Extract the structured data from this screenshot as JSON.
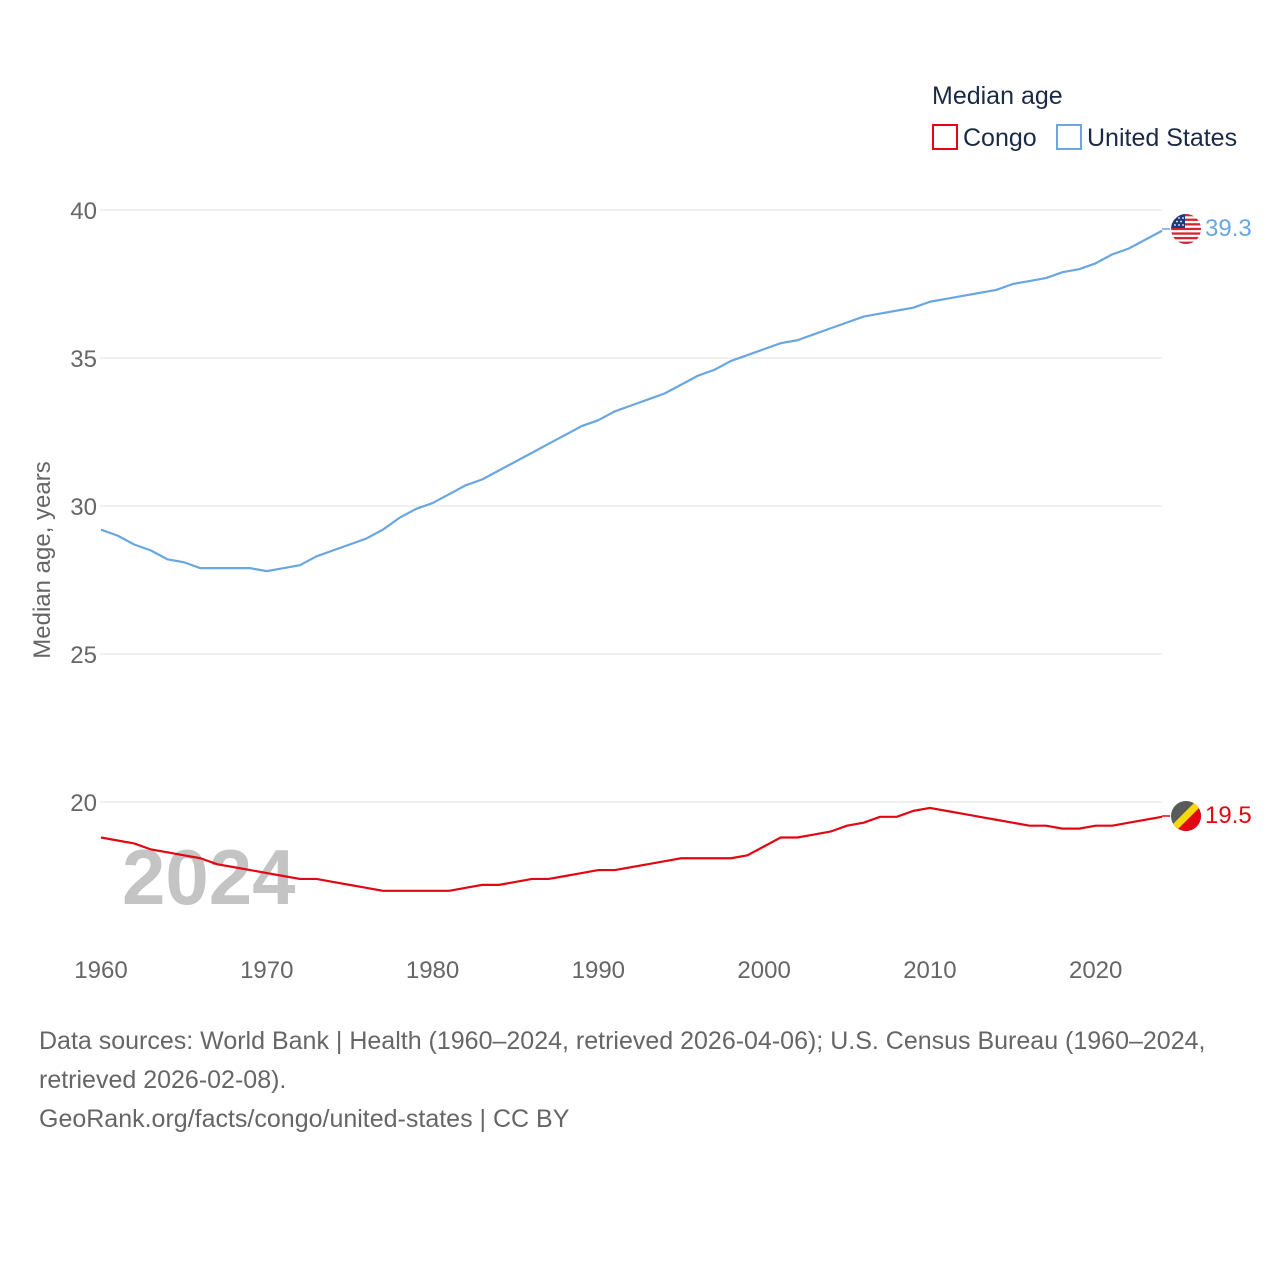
{
  "legend": {
    "title": "Median age",
    "items": [
      {
        "name": "Congo",
        "color": "#e30613"
      },
      {
        "name": "United States",
        "color": "#6aa6df"
      }
    ]
  },
  "year_watermark": "2024",
  "end_labels": {
    "us": "39.3",
    "congo": "19.5"
  },
  "flags": {
    "us": "flag-united-states-icon",
    "congo": "flag-congo-icon"
  },
  "chart_data": {
    "type": "line",
    "title": "Median age",
    "xlabel": "",
    "ylabel": "Median age, years",
    "xlim": [
      1960,
      2024
    ],
    "ylim": [
      15.8,
      40
    ],
    "x_ticks": [
      1960,
      1970,
      1980,
      1990,
      2000,
      2010,
      2020
    ],
    "y_ticks": [
      20,
      25,
      30,
      35,
      40
    ],
    "grid": true,
    "legend_position": "top-right",
    "x": [
      1960,
      1961,
      1962,
      1963,
      1964,
      1965,
      1966,
      1967,
      1968,
      1969,
      1970,
      1971,
      1972,
      1973,
      1974,
      1975,
      1976,
      1977,
      1978,
      1979,
      1980,
      1981,
      1982,
      1983,
      1984,
      1985,
      1986,
      1987,
      1988,
      1989,
      1990,
      1991,
      1992,
      1993,
      1994,
      1995,
      1996,
      1997,
      1998,
      1999,
      2000,
      2001,
      2002,
      2003,
      2004,
      2005,
      2006,
      2007,
      2008,
      2009,
      2010,
      2011,
      2012,
      2013,
      2014,
      2015,
      2016,
      2017,
      2018,
      2019,
      2020,
      2021,
      2022,
      2023,
      2024
    ],
    "series": [
      {
        "name": "United States",
        "color": "#6aa6df",
        "values": [
          29.2,
          29.0,
          28.7,
          28.5,
          28.2,
          28.1,
          27.9,
          27.9,
          27.9,
          27.9,
          27.8,
          27.9,
          28.0,
          28.3,
          28.5,
          28.7,
          28.9,
          29.2,
          29.6,
          29.9,
          30.1,
          30.4,
          30.7,
          30.9,
          31.2,
          31.5,
          31.8,
          32.1,
          32.4,
          32.7,
          32.9,
          33.2,
          33.4,
          33.6,
          33.8,
          34.1,
          34.4,
          34.6,
          34.9,
          35.1,
          35.3,
          35.5,
          35.6,
          35.8,
          36.0,
          36.2,
          36.4,
          36.5,
          36.6,
          36.7,
          36.9,
          37.0,
          37.1,
          37.2,
          37.3,
          37.5,
          37.6,
          37.7,
          37.9,
          38.0,
          38.2,
          38.5,
          38.7,
          39.0,
          39.3
        ]
      },
      {
        "name": "Congo",
        "color": "#e30613",
        "values": [
          18.8,
          18.7,
          18.6,
          18.4,
          18.3,
          18.2,
          18.1,
          17.9,
          17.8,
          17.7,
          17.6,
          17.5,
          17.4,
          17.4,
          17.3,
          17.2,
          17.1,
          17.0,
          17.0,
          17.0,
          17.0,
          17.0,
          17.1,
          17.2,
          17.2,
          17.3,
          17.4,
          17.4,
          17.5,
          17.6,
          17.7,
          17.7,
          17.8,
          17.9,
          18.0,
          18.1,
          18.1,
          18.1,
          18.1,
          18.2,
          18.5,
          18.8,
          18.8,
          18.9,
          19.0,
          19.2,
          19.3,
          19.5,
          19.5,
          19.7,
          19.8,
          19.7,
          19.6,
          19.5,
          19.4,
          19.3,
          19.2,
          19.2,
          19.1,
          19.1,
          19.2,
          19.2,
          19.3,
          19.4,
          19.5
        ]
      }
    ]
  },
  "footer": {
    "sources": "Data sources: World Bank | Health (1960–2024, retrieved 2026-04-06); U.S. Census Bureau (1960–2024, retrieved 2026-02-08).",
    "credit": "GeoRank.org/facts/congo/united-states | CC BY"
  }
}
